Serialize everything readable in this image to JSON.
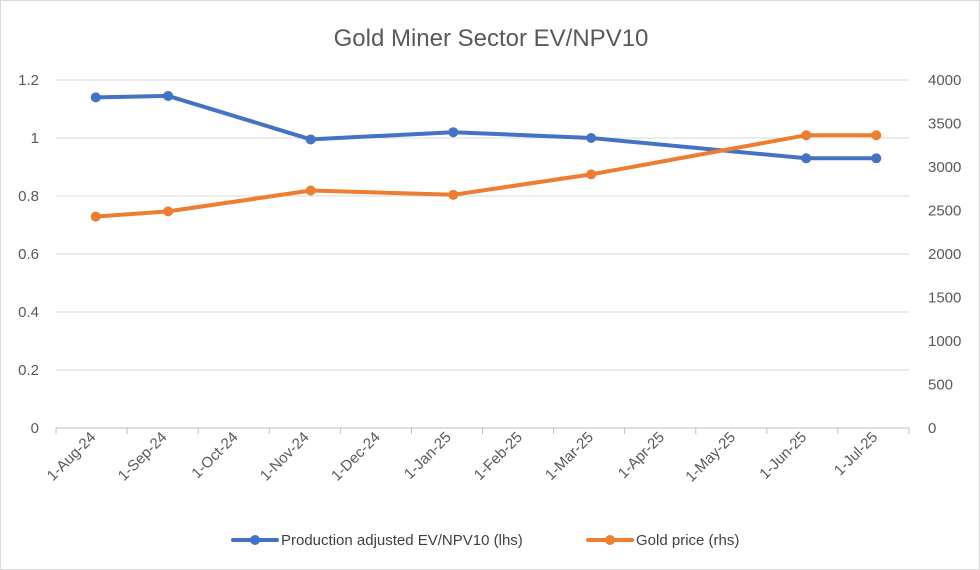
{
  "chart_data": {
    "type": "line",
    "title": "Gold Miner Sector EV/NPV10",
    "x_ticks": [
      "1-Aug-24",
      "1-Sep-24",
      "1-Oct-24",
      "1-Nov-24",
      "1-Dec-24",
      "1-Jan-25",
      "1-Feb-25",
      "1-Mar-25",
      "1-Apr-25",
      "1-May-25",
      "1-Jun-25",
      "1-Jul-25"
    ],
    "y_left": {
      "min": 0,
      "max": 1.2,
      "ticks": [
        "0",
        "0.2",
        "0.4",
        "0.6",
        "0.8",
        "1",
        "1.2"
      ]
    },
    "y_right": {
      "min": 0,
      "max": 4000,
      "ticks": [
        "0",
        "500",
        "1000",
        "1500",
        "2000",
        "2500",
        "3000",
        "3500",
        "4000"
      ]
    },
    "grid": true,
    "legend_position": "bottom",
    "series": [
      {
        "name": "Production adjusted EV/NPV10 (lhs)",
        "axis": "left",
        "color": "#4472C4",
        "points": [
          {
            "x": "2024-08-01",
            "y": 1.14
          },
          {
            "x": "2024-09-01",
            "y": 1.145
          },
          {
            "x": "2024-11-01",
            "y": 0.995
          },
          {
            "x": "2025-01-01",
            "y": 1.02
          },
          {
            "x": "2025-03-01",
            "y": 1.0
          },
          {
            "x": "2025-06-01",
            "y": 0.93
          },
          {
            "x": "2025-07-01",
            "y": 0.93
          }
        ]
      },
      {
        "name": "Gold price (rhs)",
        "axis": "right",
        "color": "#ED7D31",
        "points": [
          {
            "x": "2024-08-01",
            "y": 2430
          },
          {
            "x": "2024-09-01",
            "y": 2490
          },
          {
            "x": "2024-11-01",
            "y": 2730
          },
          {
            "x": "2025-01-01",
            "y": 2680
          },
          {
            "x": "2025-03-01",
            "y": 2915
          },
          {
            "x": "2025-06-01",
            "y": 3365
          },
          {
            "x": "2025-07-01",
            "y": 3365
          }
        ]
      }
    ]
  }
}
